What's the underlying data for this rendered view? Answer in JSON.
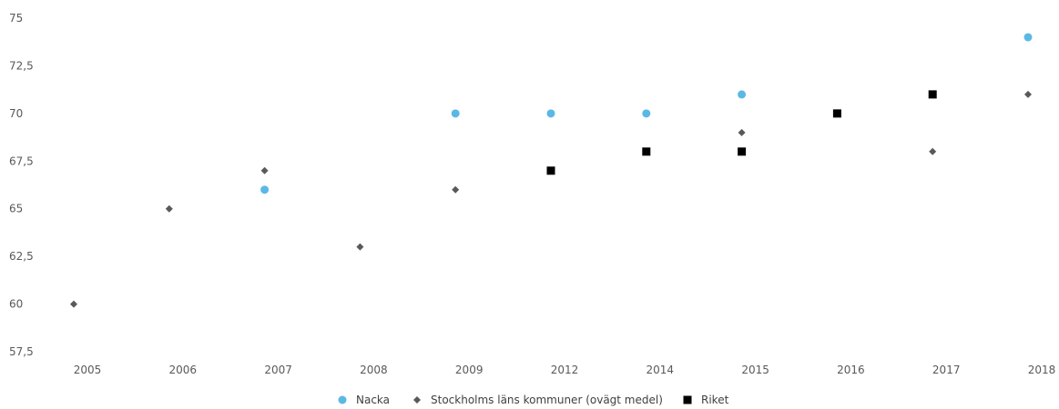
{
  "chart_data": {
    "type": "scatter",
    "categories": [
      "2005",
      "2006",
      "2007",
      "2008",
      "2009",
      "2012",
      "2014",
      "2015",
      "2016",
      "2017",
      "2018"
    ],
    "ylim": [
      57.5,
      75
    ],
    "y_ticks": [
      57.5,
      60,
      62.5,
      65,
      67.5,
      70,
      72.5,
      75
    ],
    "y_tick_labels": [
      "57,5",
      "60",
      "62,5",
      "65",
      "67,5",
      "70",
      "72,5",
      "75"
    ],
    "grid": false,
    "legend_position": "bottom",
    "series": [
      {
        "name": "Nacka",
        "marker": "circle",
        "color": "#5bb8e6",
        "values": [
          null,
          null,
          66,
          null,
          70,
          70,
          70,
          71,
          null,
          null,
          74
        ]
      },
      {
        "name": "Stockholms läns kommuner (ovägt medel)",
        "marker": "diamond",
        "color": "#595959",
        "values": [
          60,
          65,
          67,
          63,
          66,
          null,
          null,
          69,
          null,
          68,
          71
        ]
      },
      {
        "name": "Riket",
        "marker": "square",
        "color": "#000000",
        "values": [
          null,
          null,
          null,
          null,
          null,
          67,
          68,
          68,
          70,
          71,
          null
        ]
      }
    ]
  }
}
